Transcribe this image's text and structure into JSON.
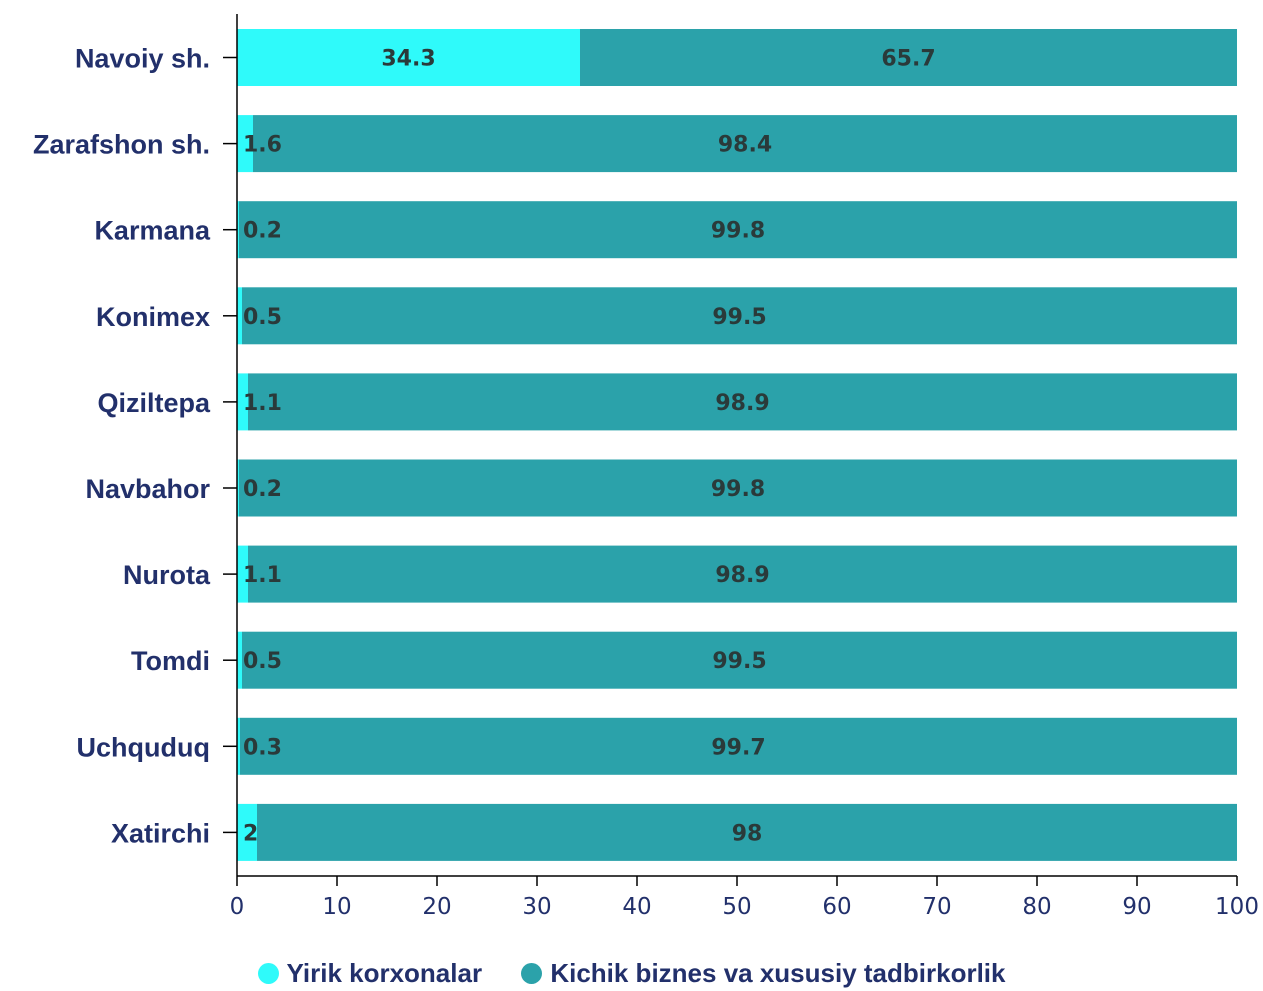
{
  "chart_data": {
    "type": "bar",
    "orientation": "horizontal",
    "stacked": true,
    "categories": [
      "Navoiy sh.",
      "Zarafshon sh.",
      "Karmana",
      "Konimex",
      "Qiziltepa",
      "Navbahor",
      "Nurota",
      "Tomdi",
      "Uchquduq",
      "Xatirchi"
    ],
    "series": [
      {
        "name": "Yirik korxonalar",
        "color": "#2ffafa",
        "values": [
          34.3,
          1.6,
          0.2,
          0.5,
          1.1,
          0.2,
          1.1,
          0.5,
          0.3,
          2
        ],
        "labels": [
          "34.3",
          "1.6",
          "0.2",
          "0.5",
          "1.1",
          "0.2",
          "1.1",
          "0.5",
          "0.3",
          "2"
        ]
      },
      {
        "name": "Kichik biznes va xususiy tadbirkorlik",
        "color": "#2ba2aa",
        "values": [
          65.7,
          98.4,
          99.8,
          99.5,
          98.9,
          99.8,
          98.9,
          99.5,
          99.7,
          98
        ],
        "labels": [
          "65.7",
          "98.4",
          "99.8",
          "99.5",
          "98.9",
          "99.8",
          "98.9",
          "99.5",
          "99.7",
          "98"
        ]
      }
    ],
    "xlim": [
      0,
      100
    ],
    "xticks": [
      "0",
      "10",
      "20",
      "30",
      "40",
      "50",
      "60",
      "70",
      "80",
      "90",
      "100"
    ],
    "title": "",
    "xlabel": "",
    "ylabel": "",
    "grid": false,
    "legend_position": "bottom"
  }
}
